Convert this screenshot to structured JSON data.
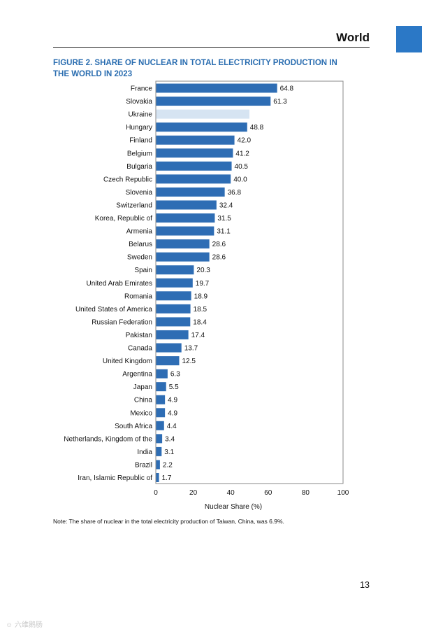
{
  "header": {
    "section": "World"
  },
  "accent_color": "#2b78c6",
  "figure_title": "FIGURE 2. SHARE OF NUCLEAR IN TOTAL ELECTRICITY PRODUCTION IN THE WORLD IN 2023",
  "note": "Note: The share of nuclear in the total electricity production of Taiwan, China, was 6.9%.",
  "page_number": "13",
  "watermark": "☺ 六维鹅肠",
  "chart_data": {
    "type": "bar",
    "orientation": "horizontal",
    "title": "FIGURE 2. SHARE OF NUCLEAR IN TOTAL ELECTRICITY PRODUCTION IN THE WORLD IN 2023",
    "xlabel": "Nuclear Share (%)",
    "ylabel": "",
    "xlim": [
      0,
      100
    ],
    "xticks": [
      0,
      20,
      40,
      60,
      80,
      100
    ],
    "bar_color": "#2e6db4",
    "highlight_color": "#d6e4f2",
    "categories": [
      "France",
      "Slovakia",
      "Ukraine",
      "Hungary",
      "Finland",
      "Belgium",
      "Bulgaria",
      "Czech Republic",
      "Slovenia",
      "Switzerland",
      "Korea, Republic of",
      "Armenia",
      "Belarus",
      "Sweden",
      "Spain",
      "United Arab Emirates",
      "Romania",
      "United States of America",
      "Russian Federation",
      "Pakistan",
      "Canada",
      "United Kingdom",
      "Argentina",
      "Japan",
      "China",
      "Mexico",
      "South Africa",
      "Netherlands, Kingdom of the",
      "India",
      "Brazil",
      "Iran, Islamic Republic of"
    ],
    "values": [
      64.8,
      61.3,
      50,
      48.8,
      42.0,
      41.2,
      40.5,
      40.0,
      36.8,
      32.4,
      31.5,
      31.1,
      28.6,
      28.6,
      20.3,
      19.7,
      18.9,
      18.5,
      18.4,
      17.4,
      13.7,
      12.5,
      6.3,
      5.5,
      4.9,
      4.9,
      4.4,
      3.4,
      3.1,
      2.2,
      1.7
    ],
    "value_labels": [
      "64.8",
      "61.3",
      "",
      "48.8",
      "42.0",
      "41.2",
      "40.5",
      "40.0",
      "36.8",
      "32.4",
      "31.5",
      "31.1",
      "28.6",
      "28.6",
      "20.3",
      "19.7",
      "18.9",
      "18.5",
      "18.4",
      "17.4",
      "13.7",
      "12.5",
      "6.3",
      "5.5",
      "4.9",
      "4.9",
      "4.4",
      "3.4",
      "3.1",
      "2.2",
      "1.7"
    ],
    "highlighted": [
      "Ukraine"
    ],
    "grid": false,
    "legend": "none"
  }
}
